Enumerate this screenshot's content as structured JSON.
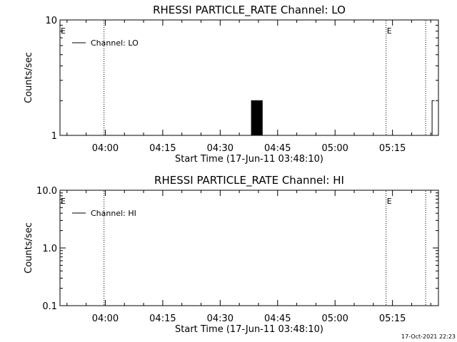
{
  "stamp": "17-Oct-2021 22:23",
  "chart_data": [
    {
      "type": "line",
      "title": "RHESSI PARTICLE_RATE Channel: LO",
      "xlabel": "Start Time (17-Jun-11 03:48:10)",
      "ylabel": "Counts/sec",
      "yscale": "log",
      "ylim": [
        1,
        10
      ],
      "y_ticks": [
        1,
        10
      ],
      "y_tick_labels": [
        "1",
        "10"
      ],
      "xlim": [
        "03:48:10",
        "05:27:00"
      ],
      "x_ticks": [
        "04:00",
        "04:15",
        "04:30",
        "04:45",
        "05:00",
        "05:15"
      ],
      "legend": "top-left",
      "grid": false,
      "series": [
        {
          "name": "Channel: LO",
          "color": "#000000",
          "x": [
            "04:38:00",
            "04:38:10",
            "04:38:20",
            "04:38:30",
            "04:38:40",
            "04:38:50",
            "04:39:00",
            "04:39:10",
            "04:39:20",
            "04:39:30",
            "04:39:40",
            "04:39:50",
            "04:40:00",
            "04:40:10",
            "04:40:20",
            "04:40:30",
            "04:40:40",
            "04:40:50",
            "04:41:00",
            "04:41:10",
            "05:25:00",
            "05:25:20",
            "05:26:00"
          ],
          "y": [
            1,
            2,
            1,
            2,
            1,
            2,
            1,
            2,
            1,
            2,
            1,
            2,
            1,
            2,
            1,
            2,
            1,
            2,
            1,
            1,
            1,
            2,
            2
          ]
        }
      ],
      "vlines": [
        "03:59:40",
        "05:13:20",
        "05:23:40"
      ],
      "markers": [
        {
          "label": "E",
          "x": "03:48:10"
        },
        {
          "label": "E",
          "x": "05:13:20"
        }
      ]
    },
    {
      "type": "line",
      "title": "RHESSI PARTICLE_RATE Channel: HI",
      "xlabel": "Start Time (17-Jun-11 03:48:10)",
      "ylabel": "Counts/sec",
      "yscale": "log",
      "ylim": [
        0.1,
        10
      ],
      "y_ticks": [
        0.1,
        1,
        10
      ],
      "y_tick_labels": [
        "0.1",
        "1.0",
        "10.0"
      ],
      "xlim": [
        "03:48:10",
        "05:27:00"
      ],
      "x_ticks": [
        "04:00",
        "04:15",
        "04:30",
        "04:45",
        "05:00",
        "05:15"
      ],
      "legend": "top-left",
      "grid": false,
      "series": [
        {
          "name": "Channel: HI",
          "color": "#000000",
          "x": [],
          "y": []
        }
      ],
      "vlines": [
        "03:59:40",
        "05:13:20",
        "05:23:40"
      ],
      "markers": [
        {
          "label": "E",
          "x": "03:48:10"
        },
        {
          "label": "E",
          "x": "05:13:20"
        }
      ]
    }
  ]
}
